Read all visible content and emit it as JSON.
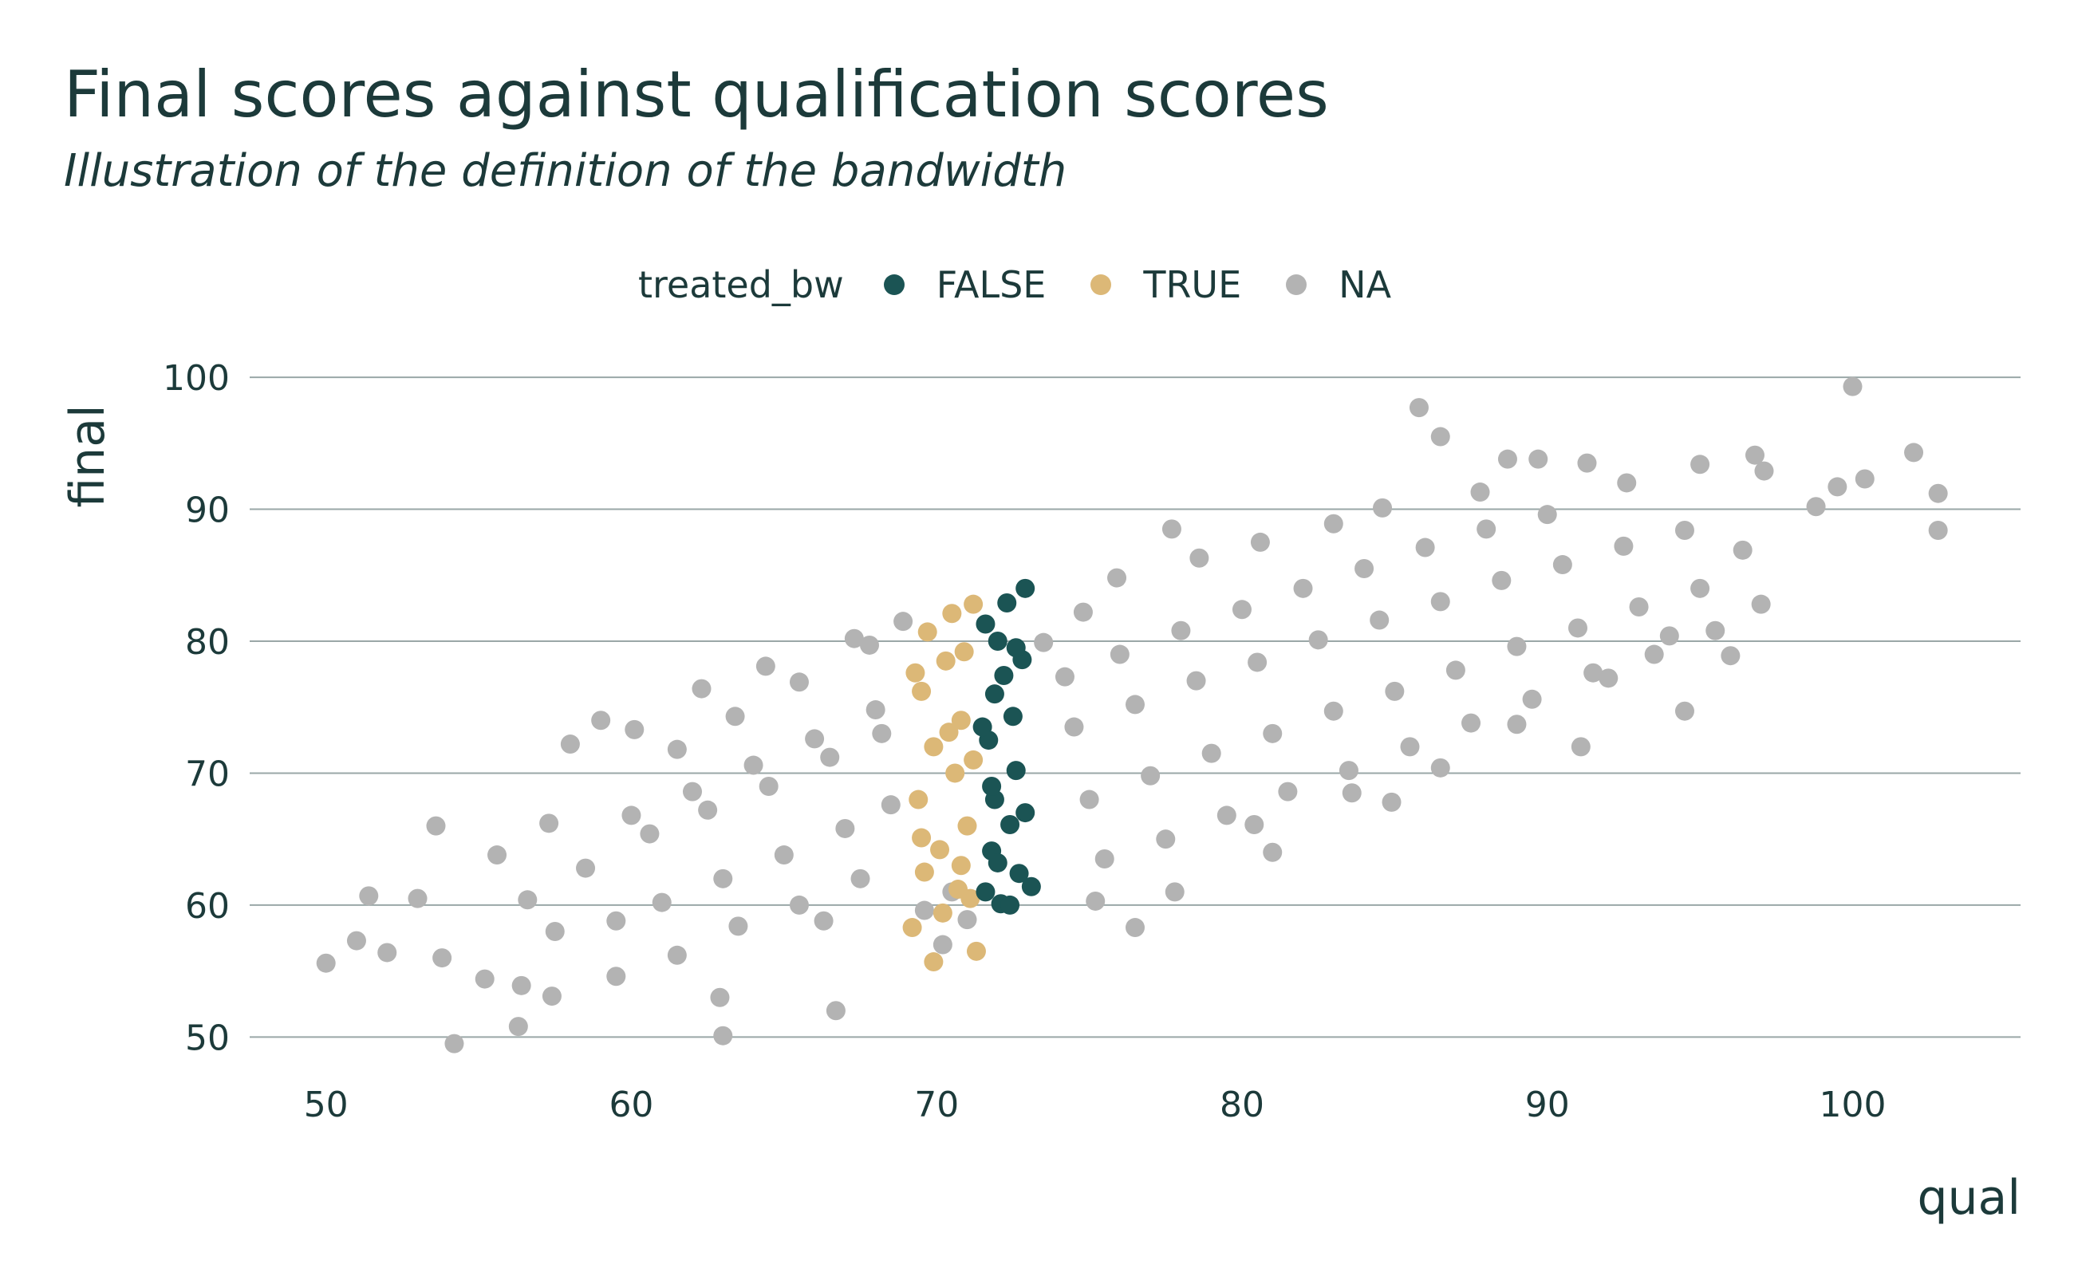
{
  "title": "Final scores against qualification scores",
  "subtitle": "Illustration of the definition of the bandwidth",
  "legend": {
    "title": "treated_bw",
    "items": [
      {
        "label": "FALSE",
        "color": "#1b5454"
      },
      {
        "label": "TRUE",
        "color": "#dcb877"
      },
      {
        "label": "NA",
        "color": "#b3b3b3"
      }
    ]
  },
  "chart_data": {
    "type": "scatter",
    "title": "Final scores against qualification scores",
    "subtitle": "Illustration of the definition of the bandwidth",
    "xlabel": "qual",
    "ylabel": "final",
    "xlim": [
      47.5,
      105.5
    ],
    "ylim": [
      47,
      102
    ],
    "xticks": [
      50,
      60,
      70,
      80,
      90,
      100
    ],
    "yticks": [
      50,
      60,
      70,
      80,
      90,
      100
    ],
    "grid": "horizontal major gridlines",
    "legend_position": "top",
    "series": [
      {
        "name": "NA",
        "color": "#b3b3b3",
        "points": [
          [
            100.0,
            99.3
          ],
          [
            85.8,
            97.7
          ],
          [
            86.5,
            95.5
          ],
          [
            102.0,
            94.3
          ],
          [
            96.8,
            94.1
          ],
          [
            89.7,
            93.8
          ],
          [
            88.7,
            93.8
          ],
          [
            91.3,
            93.5
          ],
          [
            102.8,
            91.2
          ],
          [
            102.8,
            88.4
          ],
          [
            98.8,
            90.2
          ],
          [
            99.5,
            91.7
          ],
          [
            100.4,
            92.3
          ],
          [
            97.1,
            92.9
          ],
          [
            95.0,
            93.4
          ],
          [
            77.7,
            88.5
          ],
          [
            50.0,
            55.6
          ],
          [
            54.2,
            49.5
          ],
          [
            56.3,
            50.8
          ],
          [
            63.0,
            50.1
          ],
          [
            66.7,
            52.0
          ],
          [
            58.0,
            72.2
          ],
          [
            59.0,
            74.0
          ],
          [
            51.4,
            60.7
          ],
          [
            53.0,
            60.5
          ],
          [
            55.2,
            54.4
          ],
          [
            56.4,
            53.9
          ],
          [
            60.1,
            73.3
          ],
          [
            62.3,
            76.4
          ],
          [
            64.4,
            78.1
          ],
          [
            67.3,
            80.2
          ],
          [
            68.9,
            81.5
          ],
          [
            70.2,
            57.0
          ],
          [
            76.5,
            58.3
          ],
          [
            81.0,
            64.0
          ],
          [
            84.9,
            67.8
          ],
          [
            91.1,
            72.0
          ],
          [
            94.5,
            74.7
          ],
          [
            96.0,
            78.9
          ],
          [
            52.0,
            56.4
          ],
          [
            53.6,
            66.0
          ],
          [
            55.6,
            63.8
          ],
          [
            57.3,
            66.2
          ],
          [
            61.5,
            71.8
          ],
          [
            63.4,
            74.3
          ],
          [
            65.5,
            76.9
          ],
          [
            67.8,
            79.7
          ],
          [
            73.5,
            79.9
          ],
          [
            74.8,
            82.2
          ],
          [
            75.9,
            84.8
          ],
          [
            78.6,
            86.3
          ],
          [
            80.6,
            87.5
          ],
          [
            83.0,
            88.9
          ],
          [
            84.6,
            90.1
          ],
          [
            87.8,
            91.3
          ],
          [
            92.6,
            92.0
          ],
          [
            96.4,
            86.9
          ],
          [
            94.0,
            80.4
          ],
          [
            92.0,
            77.2
          ],
          [
            89.0,
            73.7
          ],
          [
            86.5,
            70.4
          ],
          [
            83.6,
            68.5
          ],
          [
            80.4,
            66.1
          ],
          [
            77.8,
            61.0
          ],
          [
            75.2,
            60.3
          ],
          [
            62.9,
            53.0
          ],
          [
            59.5,
            54.6
          ],
          [
            57.4,
            53.1
          ],
          [
            66.3,
            58.8
          ],
          [
            53.8,
            56.0
          ],
          [
            51.0,
            57.3
          ],
          [
            56.6,
            60.4
          ],
          [
            58.5,
            62.8
          ],
          [
            60.6,
            65.4
          ],
          [
            62.5,
            67.2
          ],
          [
            64.5,
            69.0
          ],
          [
            66.5,
            71.2
          ],
          [
            68.2,
            73.0
          ],
          [
            74.5,
            73.5
          ],
          [
            76.5,
            75.2
          ],
          [
            78.5,
            77.0
          ],
          [
            80.5,
            78.4
          ],
          [
            82.5,
            80.1
          ],
          [
            84.5,
            81.6
          ],
          [
            86.5,
            83.0
          ],
          [
            88.5,
            84.6
          ],
          [
            90.5,
            85.8
          ],
          [
            92.5,
            87.2
          ],
          [
            94.5,
            88.4
          ],
          [
            61.0,
            60.2
          ],
          [
            63.0,
            62.0
          ],
          [
            65.0,
            63.8
          ],
          [
            67.0,
            65.8
          ],
          [
            68.5,
            67.6
          ],
          [
            75.0,
            68.0
          ],
          [
            77.0,
            69.8
          ],
          [
            79.0,
            71.5
          ],
          [
            81.0,
            73.0
          ],
          [
            83.0,
            74.7
          ],
          [
            85.0,
            76.2
          ],
          [
            87.0,
            77.8
          ],
          [
            89.0,
            79.6
          ],
          [
            91.0,
            81.0
          ],
          [
            93.0,
            82.6
          ],
          [
            95.0,
            84.0
          ],
          [
            60.0,
            66.8
          ],
          [
            62.0,
            68.6
          ],
          [
            64.0,
            70.6
          ],
          [
            66.0,
            72.6
          ],
          [
            68.0,
            74.8
          ],
          [
            74.2,
            77.3
          ],
          [
            76.0,
            79.0
          ],
          [
            78.0,
            80.8
          ],
          [
            80.0,
            82.4
          ],
          [
            82.0,
            84.0
          ],
          [
            84.0,
            85.5
          ],
          [
            86.0,
            87.1
          ],
          [
            88.0,
            88.5
          ],
          [
            90.0,
            89.6
          ],
          [
            57.5,
            58.0
          ],
          [
            59.5,
            58.8
          ],
          [
            61.5,
            56.2
          ],
          [
            63.5,
            58.4
          ],
          [
            65.5,
            60.0
          ],
          [
            67.5,
            62.0
          ],
          [
            75.5,
            63.5
          ],
          [
            77.5,
            65.0
          ],
          [
            79.5,
            66.8
          ],
          [
            81.5,
            68.6
          ],
          [
            83.5,
            70.2
          ],
          [
            85.5,
            72.0
          ],
          [
            87.5,
            73.8
          ],
          [
            89.5,
            75.6
          ],
          [
            91.5,
            77.6
          ],
          [
            93.5,
            79.0
          ],
          [
            95.5,
            80.8
          ],
          [
            97.0,
            82.8
          ],
          [
            70.5,
            61.0
          ],
          [
            69.6,
            59.6
          ],
          [
            71.0,
            58.9
          ]
        ]
      },
      {
        "name": "TRUE",
        "color": "#dcb877",
        "points": [
          [
            71.2,
            82.8
          ],
          [
            70.5,
            82.1
          ],
          [
            69.7,
            80.7
          ],
          [
            70.3,
            78.5
          ],
          [
            69.5,
            76.2
          ],
          [
            70.8,
            74.0
          ],
          [
            69.9,
            72.0
          ],
          [
            70.6,
            70.0
          ],
          [
            69.4,
            68.0
          ],
          [
            71.0,
            66.0
          ],
          [
            70.1,
            64.2
          ],
          [
            69.6,
            62.5
          ],
          [
            70.7,
            61.2
          ],
          [
            70.2,
            59.4
          ],
          [
            69.2,
            58.3
          ],
          [
            71.3,
            56.5
          ],
          [
            69.9,
            55.7
          ],
          [
            71.1,
            60.5
          ],
          [
            70.9,
            79.2
          ],
          [
            69.3,
            77.6
          ],
          [
            70.4,
            73.1
          ],
          [
            71.2,
            71.0
          ],
          [
            69.5,
            65.1
          ],
          [
            70.8,
            63.0
          ]
        ]
      },
      {
        "name": "FALSE",
        "color": "#1b5454",
        "points": [
          [
            72.9,
            84.0
          ],
          [
            72.3,
            82.9
          ],
          [
            71.6,
            81.3
          ],
          [
            72.0,
            80.0
          ],
          [
            72.8,
            78.6
          ],
          [
            71.9,
            76.0
          ],
          [
            72.5,
            74.3
          ],
          [
            71.7,
            72.5
          ],
          [
            72.6,
            70.2
          ],
          [
            71.9,
            68.0
          ],
          [
            72.4,
            66.1
          ],
          [
            71.8,
            64.1
          ],
          [
            72.7,
            62.4
          ],
          [
            71.6,
            61.0
          ],
          [
            72.1,
            60.1
          ],
          [
            72.4,
            60.0
          ],
          [
            73.1,
            61.4
          ],
          [
            72.2,
            77.4
          ],
          [
            71.5,
            73.5
          ],
          [
            72.9,
            67.0
          ],
          [
            72.0,
            63.2
          ],
          [
            72.6,
            79.5
          ],
          [
            71.8,
            69.0
          ]
        ]
      }
    ]
  }
}
